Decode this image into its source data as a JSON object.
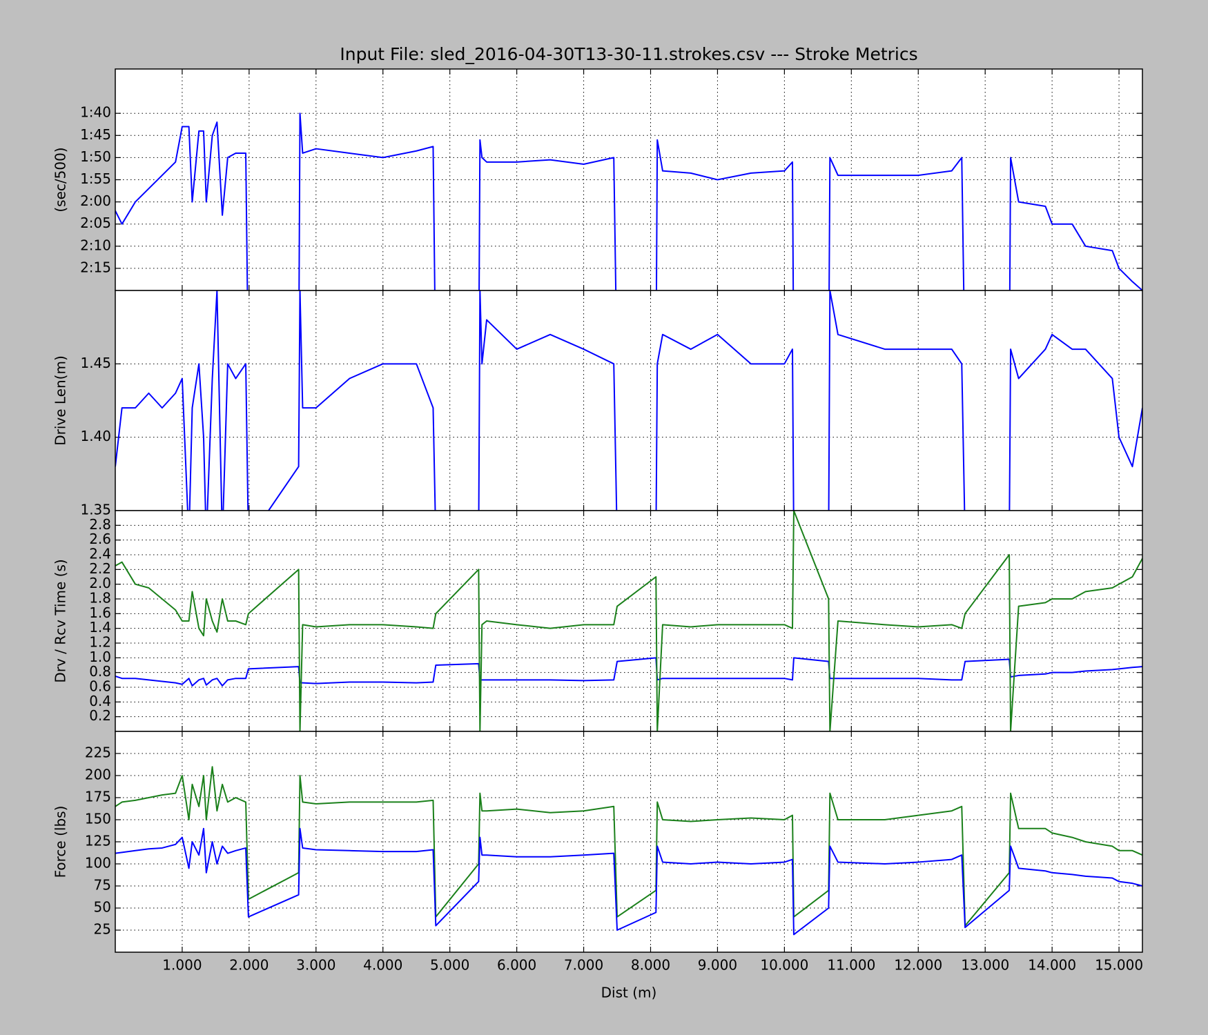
{
  "chart_data": [
    {
      "type": "line",
      "title": "Input File:  sled_2016-04-30T13-30-11.strokes.csv --- Stroke Metrics",
      "ylabel": "(sec/500)",
      "x": [
        0,
        100,
        300,
        500,
        700,
        900,
        1000,
        1100,
        1150,
        1250,
        1320,
        1360,
        1450,
        1520,
        1600,
        1680,
        1800,
        1950,
        1990,
        2740,
        2760,
        2800,
        3000,
        3500,
        4000,
        4500,
        4750,
        4790,
        5430,
        5450,
        5480,
        5550,
        6000,
        6500,
        7000,
        7450,
        7500,
        8080,
        8100,
        8180,
        8600,
        9000,
        9500,
        10000,
        10120,
        10140,
        10660,
        10680,
        10800,
        11500,
        12000,
        12500,
        12650,
        12700,
        13360,
        13380,
        13500,
        13900,
        14000,
        14300,
        14500,
        14900,
        15000,
        15200,
        15350
      ],
      "series": [
        {
          "color": "#0000ff",
          "values": [
            122,
            125,
            120,
            117,
            114,
            111,
            103,
            103,
            120,
            104,
            104,
            120,
            105,
            102,
            123,
            110,
            109,
            109,
            160,
            160,
            100,
            109,
            108,
            109,
            110,
            108.5,
            107.5,
            160,
            160,
            106,
            110,
            111,
            111,
            110.5,
            111.5,
            110,
            160,
            160,
            106,
            113,
            113.5,
            115,
            113.5,
            113,
            111,
            160,
            160,
            110,
            114,
            114,
            114,
            113,
            110,
            160,
            160,
            110,
            120,
            121,
            125,
            125,
            130,
            131,
            135,
            138,
            140
          ]
        }
      ],
      "ylim": [
        140,
        90
      ],
      "yticks": [
        {
          "value": 100,
          "label": "1:40"
        },
        {
          "value": 105,
          "label": "1:45"
        },
        {
          "value": 110,
          "label": "1:50"
        },
        {
          "value": 115,
          "label": "1:55"
        },
        {
          "value": 120,
          "label": "2:00"
        },
        {
          "value": 125,
          "label": "2:05"
        },
        {
          "value": 130,
          "label": "2:10"
        },
        {
          "value": 135,
          "label": "2:15"
        }
      ],
      "grid": true
    },
    {
      "type": "line",
      "ylabel": "Drive Len(m)",
      "x": [
        0,
        100,
        300,
        500,
        700,
        900,
        1000,
        1100,
        1150,
        1250,
        1320,
        1360,
        1450,
        1520,
        1600,
        1680,
        1800,
        1950,
        1990,
        2740,
        2760,
        2800,
        3000,
        3500,
        4000,
        4500,
        4750,
        4790,
        5430,
        5450,
        5480,
        5550,
        6000,
        6500,
        7000,
        7450,
        7500,
        8080,
        8100,
        8180,
        8600,
        9000,
        9500,
        10000,
        10120,
        10140,
        10660,
        10680,
        10800,
        11500,
        12000,
        12500,
        12650,
        12700,
        13360,
        13380,
        13500,
        13900,
        14000,
        14300,
        14500,
        14900,
        15000,
        15200,
        15350
      ],
      "series": [
        {
          "color": "#0000ff",
          "values": [
            1.38,
            1.42,
            1.42,
            1.43,
            1.42,
            1.43,
            1.44,
            1.33,
            1.42,
            1.45,
            1.4,
            1.33,
            1.44,
            1.5,
            1.33,
            1.45,
            1.44,
            1.45,
            1.33,
            1.38,
            1.5,
            1.42,
            1.42,
            1.44,
            1.45,
            1.45,
            1.42,
            1.33,
            1.33,
            1.5,
            1.45,
            1.48,
            1.46,
            1.47,
            1.46,
            1.45,
            1.33,
            1.33,
            1.45,
            1.47,
            1.46,
            1.47,
            1.45,
            1.45,
            1.46,
            1.33,
            1.33,
            1.5,
            1.47,
            1.46,
            1.46,
            1.46,
            1.45,
            1.33,
            1.33,
            1.46,
            1.44,
            1.46,
            1.47,
            1.46,
            1.46,
            1.44,
            1.4,
            1.38,
            1.42
          ]
        }
      ],
      "ylim": [
        1.35,
        1.5
      ],
      "yticks": [
        1.35,
        {
          "value": 1.4,
          "label": "1.40"
        },
        1.45
      ],
      "grid": true
    },
    {
      "type": "line",
      "ylabel": "Drv / Rcv Time (s)",
      "x": [
        0,
        100,
        300,
        500,
        700,
        900,
        1000,
        1100,
        1150,
        1250,
        1320,
        1360,
        1450,
        1520,
        1600,
        1680,
        1800,
        1950,
        1990,
        2740,
        2760,
        2800,
        3000,
        3500,
        4000,
        4500,
        4750,
        4790,
        5430,
        5450,
        5480,
        5550,
        6000,
        6500,
        7000,
        7450,
        7500,
        8080,
        8100,
        8180,
        8600,
        9000,
        9500,
        10000,
        10120,
        10140,
        10660,
        10680,
        10800,
        11500,
        12000,
        12500,
        12650,
        12700,
        13360,
        13380,
        13500,
        13900,
        14000,
        14300,
        14500,
        14900,
        15000,
        15200,
        15350
      ],
      "series": [
        {
          "color": "#0000ff",
          "values": [
            0.75,
            0.72,
            0.72,
            0.7,
            0.68,
            0.66,
            0.64,
            0.72,
            0.62,
            0.7,
            0.72,
            0.63,
            0.7,
            0.72,
            0.62,
            0.7,
            0.72,
            0.72,
            0.85,
            0.88,
            0.66,
            0.66,
            0.65,
            0.67,
            0.67,
            0.66,
            0.67,
            0.9,
            0.92,
            0.7,
            0.7,
            0.7,
            0.7,
            0.7,
            0.69,
            0.7,
            0.95,
            1.0,
            0.7,
            0.72,
            0.72,
            0.72,
            0.72,
            0.72,
            0.7,
            1.0,
            0.95,
            0.72,
            0.72,
            0.72,
            0.72,
            0.7,
            0.7,
            0.95,
            0.98,
            0.74,
            0.76,
            0.78,
            0.8,
            0.8,
            0.82,
            0.84,
            0.85,
            0.87,
            0.88
          ]
        },
        {
          "color": "#1a801a",
          "values": [
            2.25,
            2.3,
            2.0,
            1.95,
            1.8,
            1.65,
            1.5,
            1.5,
            1.9,
            1.4,
            1.3,
            1.8,
            1.5,
            1.35,
            1.8,
            1.5,
            1.5,
            1.45,
            1.6,
            2.2,
            0,
            1.45,
            1.42,
            1.45,
            1.45,
            1.42,
            1.4,
            1.6,
            2.2,
            0,
            1.45,
            1.5,
            1.45,
            1.4,
            1.45,
            1.45,
            1.7,
            2.1,
            0,
            1.45,
            1.42,
            1.45,
            1.45,
            1.45,
            1.4,
            3.0,
            1.8,
            0,
            1.5,
            1.45,
            1.42,
            1.45,
            1.4,
            1.6,
            2.4,
            0,
            1.7,
            1.75,
            1.8,
            1.8,
            1.9,
            1.95,
            2.0,
            2.1,
            2.35
          ]
        }
      ],
      "ylim": [
        0,
        3
      ],
      "yticks": [
        0.2,
        0.4,
        0.6,
        0.8,
        {
          "value": 1,
          "label": "1.0"
        },
        1.2,
        1.4,
        1.6,
        1.8,
        {
          "value": 2,
          "label": "2.0"
        },
        2.2,
        2.4,
        2.6,
        2.8
      ],
      "grid": true
    },
    {
      "type": "line",
      "ylabel": "Force (lbs)",
      "xlabel": "Dist (m)",
      "x": [
        0,
        100,
        300,
        500,
        700,
        900,
        1000,
        1100,
        1150,
        1250,
        1320,
        1360,
        1450,
        1520,
        1600,
        1680,
        1800,
        1950,
        1990,
        2740,
        2760,
        2800,
        3000,
        3500,
        4000,
        4500,
        4750,
        4790,
        5430,
        5450,
        5480,
        5550,
        6000,
        6500,
        7000,
        7450,
        7500,
        8080,
        8100,
        8180,
        8600,
        9000,
        9500,
        10000,
        10120,
        10140,
        10660,
        10680,
        10800,
        11500,
        12000,
        12500,
        12650,
        12700,
        13360,
        13380,
        13500,
        13900,
        14000,
        14300,
        14500,
        14900,
        15000,
        15200,
        15350
      ],
      "series": [
        {
          "color": "#1a801a",
          "values": [
            165,
            170,
            172,
            175,
            178,
            180,
            200,
            150,
            190,
            165,
            200,
            150,
            210,
            160,
            190,
            170,
            175,
            170,
            60,
            90,
            200,
            170,
            168,
            170,
            170,
            170,
            172,
            40,
            100,
            180,
            160,
            160,
            162,
            158,
            160,
            165,
            40,
            70,
            170,
            150,
            148,
            150,
            152,
            150,
            155,
            40,
            70,
            180,
            150,
            150,
            155,
            160,
            165,
            30,
            90,
            180,
            140,
            140,
            135,
            130,
            125,
            120,
            115,
            115,
            110
          ]
        },
        {
          "color": "#0000ff",
          "values": [
            112,
            113,
            115,
            117,
            118,
            122,
            130,
            95,
            125,
            110,
            140,
            90,
            125,
            100,
            120,
            112,
            115,
            118,
            40,
            65,
            140,
            118,
            116,
            115,
            114,
            114,
            116,
            30,
            80,
            130,
            110,
            110,
            108,
            108,
            110,
            112,
            25,
            45,
            120,
            102,
            100,
            102,
            100,
            102,
            105,
            20,
            50,
            120,
            102,
            100,
            102,
            105,
            110,
            28,
            70,
            120,
            95,
            92,
            90,
            88,
            86,
            84,
            80,
            78,
            75
          ]
        }
      ],
      "ylim": [
        0,
        250
      ],
      "yticks": [
        25,
        50,
        75,
        100,
        125,
        150,
        175,
        200,
        225
      ],
      "xlim": [
        0,
        15350
      ],
      "xticks": [
        {
          "value": 1000,
          "label": "1.000"
        },
        {
          "value": 2000,
          "label": "2.000"
        },
        {
          "value": 3000,
          "label": "3.000"
        },
        {
          "value": 4000,
          "label": "4.000"
        },
        {
          "value": 5000,
          "label": "5.000"
        },
        {
          "value": 6000,
          "label": "6.000"
        },
        {
          "value": 7000,
          "label": "7.000"
        },
        {
          "value": 8000,
          "label": "8.000"
        },
        {
          "value": 9000,
          "label": "9.000"
        },
        {
          "value": 10000,
          "label": "10.000"
        },
        {
          "value": 11000,
          "label": "11.000"
        },
        {
          "value": 12000,
          "label": "12.000"
        },
        {
          "value": 13000,
          "label": "13.000"
        },
        {
          "value": 14000,
          "label": "14.000"
        },
        {
          "value": 15000,
          "label": "15.000"
        }
      ],
      "grid": true
    }
  ]
}
